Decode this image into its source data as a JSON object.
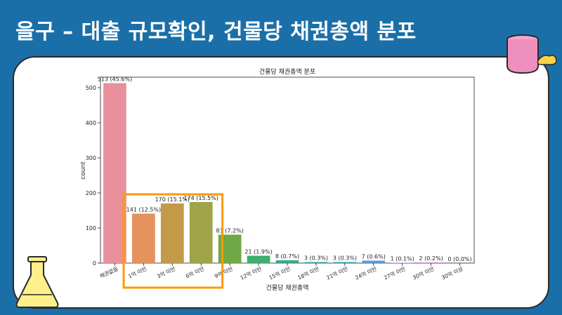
{
  "slide": {
    "title": "을구 – 대출 규모확인, 건물당 채권총액 분포"
  },
  "chart_data": {
    "type": "bar",
    "title": "건물당 채권총액 분포",
    "xlabel": "건물당 채권총액",
    "ylabel": "count",
    "ylim": [
      0,
      530
    ],
    "yticks": [
      0,
      100,
      200,
      300,
      400,
      500
    ],
    "grid": false,
    "categories": [
      "채권없음",
      "1억 미만",
      "3억 미만",
      "6억 미만",
      "9억 미만",
      "12억 미만",
      "15억 미만",
      "18억 미만",
      "21억 미만",
      "24억 미만",
      "27억 미만",
      "30억 미만",
      "30억 이상"
    ],
    "values": [
      513,
      141,
      170,
      174,
      81,
      21,
      8,
      3,
      3,
      7,
      1,
      2,
      0
    ],
    "data_labels": [
      "513 (45.6%)",
      "141 (12.5%)",
      "170 (15.1%)",
      "174 (15.5%)",
      "81 (7.2%)",
      "21 (1.9%)",
      "8 (0.7%)",
      "3 (0.3%)",
      "3 (0.3%)",
      "7 (0.6%)",
      "1 (0.1%)",
      "2 (0.2%)",
      "0 (0.0%)"
    ],
    "colors": [
      "#e8919d",
      "#e6925f",
      "#c39a48",
      "#9ea447",
      "#6fa845",
      "#3fae70",
      "#3aa88f",
      "#3ca3a3",
      "#3f9fb5",
      "#5b9ad6",
      "#9b92d8",
      "#d78bd0",
      "#e48bb3"
    ],
    "highlight": {
      "categories": [
        "1억 미만",
        "3억 미만",
        "6억 미만"
      ],
      "color": "#ff9900"
    }
  }
}
